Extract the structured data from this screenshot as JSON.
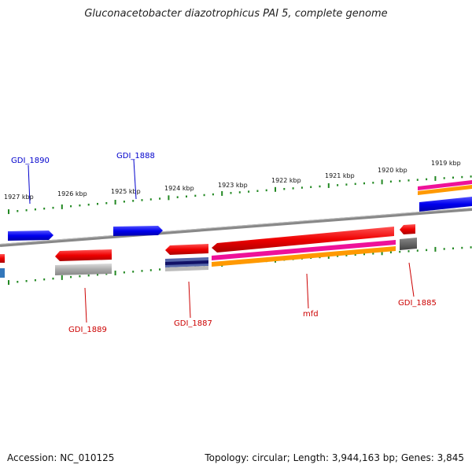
{
  "title": "Gluconacetobacter diazotrophicus PAI 5, complete genome",
  "footer": {
    "accession": "Accession: NC_010125",
    "summary": "Topology: circular; Length: 3,944,163 bp; Genes: 3,845"
  },
  "ticks": [
    "1927 kbp",
    "1926 kbp",
    "1925 kbp",
    "1924 kbp",
    "1923 kbp",
    "1922 kbp",
    "1921 kbp",
    "1920 kbp",
    "1919 kbp"
  ],
  "genes_forward": [
    "GDI_1890",
    "GDI_1888"
  ],
  "genes_reverse": [
    "GDI_1889",
    "GDI_1887",
    "mfd",
    "GDI_1885"
  ],
  "colors": {
    "gene": "#ee0000",
    "forward": "#0000ee",
    "pink": "#ee1199",
    "orange": "#ff9900",
    "gray": "#aaaaaa",
    "navy": "#111166",
    "tick": "#228822",
    "backbone": "#888888"
  }
}
